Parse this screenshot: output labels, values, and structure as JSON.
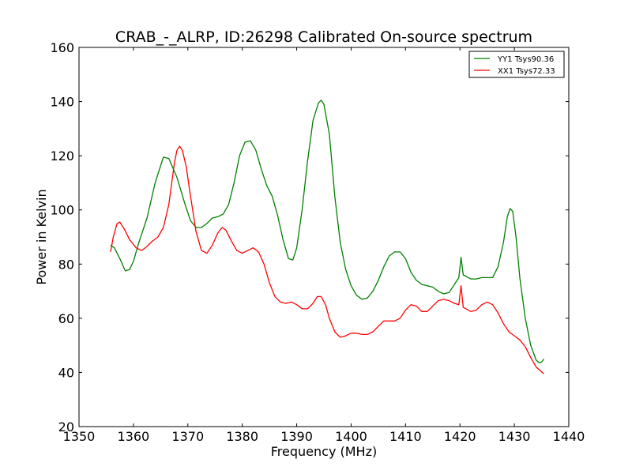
{
  "chart_data": {
    "type": "line",
    "title": "CRAB_-_ALRP, ID:26298 Calibrated On-source spectrum",
    "xlabel": "Frequency (MHz)",
    "ylabel": "Power in Kelvin",
    "xlim": [
      1350,
      1440
    ],
    "ylim": [
      20,
      160
    ],
    "xticks": [
      1350,
      1360,
      1370,
      1380,
      1390,
      1400,
      1410,
      1420,
      1430,
      1440
    ],
    "yticks": [
      20,
      40,
      60,
      80,
      100,
      120,
      140,
      160
    ],
    "grid": false,
    "legend_position": "top-right",
    "series": [
      {
        "name": "YY1 Tsys90.36",
        "color": "#008000",
        "points": [
          [
            1355.8,
            87
          ],
          [
            1356.5,
            86
          ],
          [
            1357.5,
            82
          ],
          [
            1358.5,
            77.5
          ],
          [
            1359.3,
            78
          ],
          [
            1360,
            81
          ],
          [
            1361,
            88
          ],
          [
            1362.5,
            97
          ],
          [
            1364,
            110
          ],
          [
            1365.5,
            119.5
          ],
          [
            1366.5,
            119
          ],
          [
            1368,
            112
          ],
          [
            1369.5,
            102
          ],
          [
            1370.5,
            96
          ],
          [
            1371.5,
            93.5
          ],
          [
            1372.5,
            93.5
          ],
          [
            1373.5,
            95
          ],
          [
            1374.5,
            97
          ],
          [
            1375.5,
            97.5
          ],
          [
            1376.5,
            98.5
          ],
          [
            1377.5,
            102
          ],
          [
            1378.5,
            110
          ],
          [
            1379.5,
            120
          ],
          [
            1380.5,
            125
          ],
          [
            1381.5,
            125.5
          ],
          [
            1382.5,
            122
          ],
          [
            1383.5,
            115
          ],
          [
            1384.5,
            109
          ],
          [
            1385.5,
            105
          ],
          [
            1386.5,
            98
          ],
          [
            1387.5,
            89
          ],
          [
            1388.5,
            82
          ],
          [
            1389.3,
            81.5
          ],
          [
            1390,
            86
          ],
          [
            1391,
            100
          ],
          [
            1392,
            118
          ],
          [
            1393,
            133
          ],
          [
            1394,
            139.5
          ],
          [
            1394.5,
            140.5
          ],
          [
            1395,
            139
          ],
          [
            1396,
            128
          ],
          [
            1397,
            105
          ],
          [
            1398,
            88
          ],
          [
            1399,
            78
          ],
          [
            1400,
            72
          ],
          [
            1401,
            68.5
          ],
          [
            1402,
            67
          ],
          [
            1403,
            67.5
          ],
          [
            1404,
            70
          ],
          [
            1405,
            74
          ],
          [
            1406,
            79
          ],
          [
            1407,
            83
          ],
          [
            1408,
            84.5
          ],
          [
            1409,
            84.5
          ],
          [
            1410,
            82
          ],
          [
            1411,
            77
          ],
          [
            1412,
            74
          ],
          [
            1413,
            72.5
          ],
          [
            1414,
            72
          ],
          [
            1415,
            71.5
          ],
          [
            1416,
            70
          ],
          [
            1417,
            69
          ],
          [
            1418,
            69.5
          ],
          [
            1419,
            72.5
          ],
          [
            1419.8,
            75
          ],
          [
            1420.2,
            82.5
          ],
          [
            1420.6,
            76
          ],
          [
            1422,
            74.5
          ],
          [
            1423,
            74.5
          ],
          [
            1424,
            75
          ],
          [
            1425,
            75
          ],
          [
            1426,
            75
          ],
          [
            1427,
            79
          ],
          [
            1428,
            88
          ],
          [
            1428.7,
            97.5
          ],
          [
            1429.2,
            100.5
          ],
          [
            1429.7,
            99.5
          ],
          [
            1430.3,
            90
          ],
          [
            1431,
            75
          ],
          [
            1432,
            60
          ],
          [
            1433,
            50
          ],
          [
            1434,
            44.5
          ],
          [
            1434.6,
            43.5
          ],
          [
            1435.1,
            44
          ],
          [
            1435.4,
            45
          ]
        ]
      },
      {
        "name": "XX1 Tsys72.33",
        "color": "#ff0000",
        "points": [
          [
            1355.8,
            84.5
          ],
          [
            1356.3,
            90
          ],
          [
            1357,
            95
          ],
          [
            1357.5,
            95.5
          ],
          [
            1358.3,
            93
          ],
          [
            1359.3,
            89
          ],
          [
            1360.5,
            86
          ],
          [
            1361.5,
            85
          ],
          [
            1362.5,
            86.5
          ],
          [
            1363.5,
            88.5
          ],
          [
            1364.5,
            90
          ],
          [
            1365.5,
            93.5
          ],
          [
            1366.5,
            102
          ],
          [
            1367.5,
            117
          ],
          [
            1368,
            122
          ],
          [
            1368.5,
            123.5
          ],
          [
            1369,
            122
          ],
          [
            1369.7,
            116
          ],
          [
            1370.5,
            105
          ],
          [
            1371.5,
            92
          ],
          [
            1372.5,
            85
          ],
          [
            1373.5,
            84
          ],
          [
            1374.5,
            87
          ],
          [
            1375.5,
            91.5
          ],
          [
            1376.3,
            93.5
          ],
          [
            1377,
            92.5
          ],
          [
            1378,
            88.5
          ],
          [
            1379,
            85
          ],
          [
            1380,
            84
          ],
          [
            1381,
            85
          ],
          [
            1382,
            86
          ],
          [
            1383,
            84.5
          ],
          [
            1384,
            80
          ],
          [
            1385,
            73
          ],
          [
            1386,
            68
          ],
          [
            1387,
            66
          ],
          [
            1388,
            65.5
          ],
          [
            1389,
            66
          ],
          [
            1390,
            65
          ],
          [
            1391,
            63.5
          ],
          [
            1392,
            63.5
          ],
          [
            1393,
            65.5
          ],
          [
            1393.8,
            68
          ],
          [
            1394.5,
            68
          ],
          [
            1395.3,
            65
          ],
          [
            1396,
            60
          ],
          [
            1397,
            55
          ],
          [
            1398,
            53
          ],
          [
            1399,
            53.5
          ],
          [
            1400,
            54.5
          ],
          [
            1401,
            54.5
          ],
          [
            1402,
            54
          ],
          [
            1403,
            54
          ],
          [
            1404,
            55
          ],
          [
            1405,
            57
          ],
          [
            1406,
            59
          ],
          [
            1407,
            59
          ],
          [
            1408,
            59
          ],
          [
            1409,
            60
          ],
          [
            1410,
            63
          ],
          [
            1411,
            65
          ],
          [
            1412,
            64.5
          ],
          [
            1413,
            62.5
          ],
          [
            1414,
            62.5
          ],
          [
            1415,
            64.5
          ],
          [
            1416,
            66.5
          ],
          [
            1417,
            67
          ],
          [
            1418,
            66.5
          ],
          [
            1419,
            65.5
          ],
          [
            1419.8,
            65
          ],
          [
            1420.2,
            72
          ],
          [
            1420.6,
            64
          ],
          [
            1422,
            62.5
          ],
          [
            1423,
            63
          ],
          [
            1424,
            65
          ],
          [
            1425,
            66
          ],
          [
            1426,
            65
          ],
          [
            1427,
            62
          ],
          [
            1428,
            58
          ],
          [
            1429,
            55
          ],
          [
            1430,
            53.5
          ],
          [
            1431,
            52
          ],
          [
            1432,
            49.5
          ],
          [
            1433,
            45.5
          ],
          [
            1434,
            42
          ],
          [
            1435.4,
            39.5
          ]
        ]
      }
    ]
  }
}
